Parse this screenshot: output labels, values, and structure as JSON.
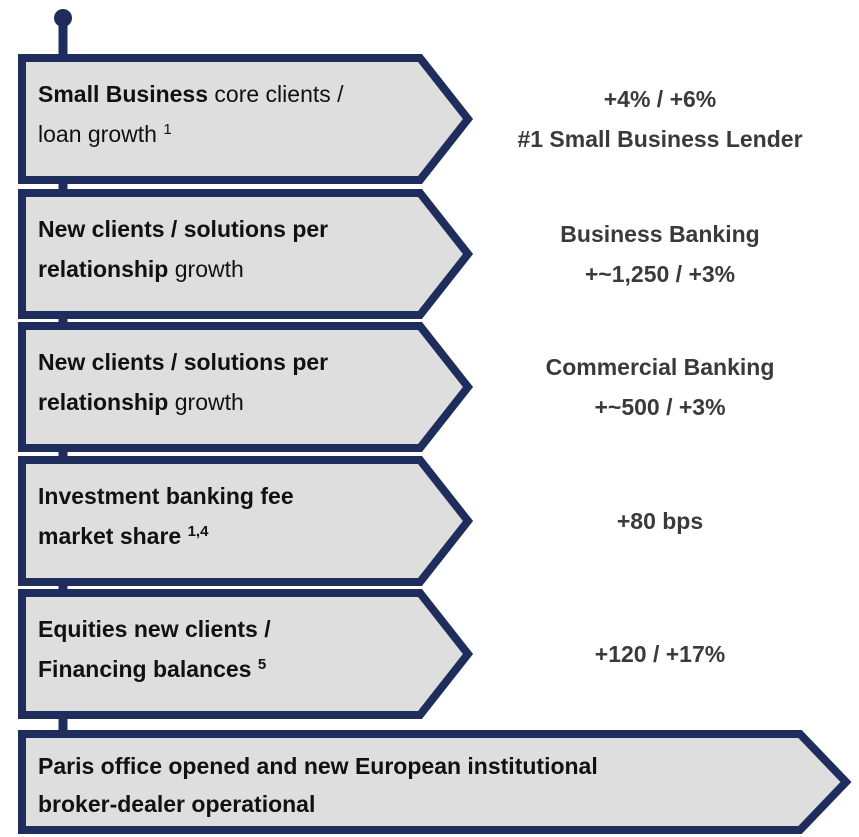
{
  "items": [
    {
      "lines": [
        [
          {
            "text": "Small Business",
            "bold": true
          },
          {
            "text": " core clients /"
          }
        ],
        [
          {
            "text": "loan growth "
          },
          {
            "text": "1",
            "sup": true
          }
        ]
      ],
      "result": [
        "+4% / +6%",
        "#1 Small Business Lender"
      ]
    },
    {
      "lines": [
        [
          {
            "text": "New clients / solutions per",
            "bold": true
          }
        ],
        [
          {
            "text": "relationship",
            "bold": true
          },
          {
            "text": " growth"
          }
        ]
      ],
      "result": [
        "Business Banking",
        "+~1,250 / +3%"
      ]
    },
    {
      "lines": [
        [
          {
            "text": "New clients / solutions per",
            "bold": true
          }
        ],
        [
          {
            "text": "relationship",
            "bold": true
          },
          {
            "text": " growth"
          }
        ]
      ],
      "result": [
        "Commercial Banking",
        "+~500 / +3%"
      ]
    },
    {
      "lines": [
        [
          {
            "text": "Investment banking fee",
            "bold": true
          }
        ],
        [
          {
            "text": "market share ",
            "bold": true
          },
          {
            "text": "1,4",
            "bold": true,
            "sup": true
          }
        ]
      ],
      "result": [
        "+80 bps"
      ]
    },
    {
      "lines": [
        [
          {
            "text": "Equities new clients /",
            "bold": true
          }
        ],
        [
          {
            "text": "Financing balances ",
            "bold": true
          },
          {
            "text": "5",
            "bold": true,
            "sup": true
          }
        ]
      ],
      "result": [
        "+120 / +17%"
      ]
    }
  ],
  "final": {
    "lines": [
      [
        {
          "text": "Paris office opened and new European institutional",
          "bold": true
        }
      ],
      [
        {
          "text": "broker-dealer operational",
          "bold": true
        }
      ]
    ]
  }
}
